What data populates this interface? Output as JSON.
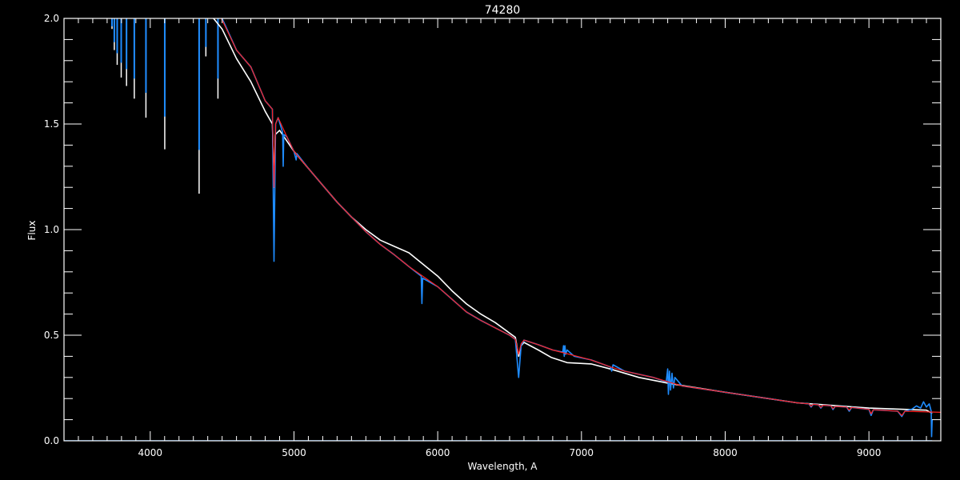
{
  "chart_data": {
    "type": "line",
    "title": "74280",
    "xlabel": "Wavelength, A",
    "ylabel": "Flux",
    "xlim": [
      3400,
      9500
    ],
    "ylim": [
      0.0,
      2.0
    ],
    "x_ticks": [
      4000,
      5000,
      6000,
      7000,
      8000,
      9000
    ],
    "x_tick_labels": [
      "4000",
      "5000",
      "6000",
      "7000",
      "8000",
      "9000"
    ],
    "x_minor_step": 100,
    "y_ticks": [
      0.0,
      0.5,
      1.0,
      1.5,
      2.0
    ],
    "y_tick_labels": [
      "0.0",
      "0.5",
      "1.0",
      "1.5",
      "2.0"
    ],
    "y_minor_step": 0.1,
    "grid": false,
    "background": "#000000",
    "axis_color": "#ffffff",
    "series": [
      {
        "color": "#ffffff",
        "points": [
          [
            4440,
            2.0
          ],
          [
            4500,
            1.95
          ],
          [
            4600,
            1.81
          ],
          [
            4700,
            1.7
          ],
          [
            4800,
            1.56
          ],
          [
            4850,
            1.5
          ],
          [
            4861,
            1.2
          ],
          [
            4870,
            1.45
          ],
          [
            4900,
            1.47
          ],
          [
            5000,
            1.37
          ],
          [
            5100,
            1.29
          ],
          [
            5200,
            1.21
          ],
          [
            5300,
            1.13
          ],
          [
            5400,
            1.06
          ],
          [
            5500,
            1.0
          ],
          [
            5600,
            0.95
          ],
          [
            5700,
            0.92
          ],
          [
            5800,
            0.89
          ],
          [
            5900,
            0.835
          ],
          [
            6000,
            0.78
          ],
          [
            6100,
            0.71
          ],
          [
            6200,
            0.648
          ],
          [
            6300,
            0.6
          ],
          [
            6400,
            0.56
          ],
          [
            6500,
            0.51
          ],
          [
            6540,
            0.49
          ],
          [
            6563,
            0.4
          ],
          [
            6580,
            0.45
          ],
          [
            6600,
            0.466
          ],
          [
            6700,
            0.43
          ],
          [
            6789,
            0.395
          ],
          [
            6900,
            0.37
          ],
          [
            7067,
            0.364
          ],
          [
            7200,
            0.34
          ],
          [
            7400,
            0.3
          ],
          [
            7622,
            0.27
          ],
          [
            8000,
            0.23
          ],
          [
            8500,
            0.18
          ],
          [
            9000,
            0.155
          ],
          [
            9400,
            0.145
          ],
          [
            9440,
            0.13
          ]
        ]
      },
      {
        "color": "#1e8cff",
        "points": [
          [
            4500,
            2.0
          ],
          [
            4600,
            1.85
          ],
          [
            4700,
            1.77
          ],
          [
            4800,
            1.61
          ],
          [
            4850,
            1.57
          ],
          [
            4861,
            0.85
          ],
          [
            4872,
            1.5
          ],
          [
            4890,
            1.53
          ],
          [
            4921,
            1.46
          ],
          [
            4925,
            1.3
          ],
          [
            4929,
            1.45
          ],
          [
            4950,
            1.44
          ],
          [
            5000,
            1.37
          ],
          [
            5015,
            1.33
          ],
          [
            5020,
            1.36
          ],
          [
            5100,
            1.29
          ],
          [
            5200,
            1.21
          ],
          [
            5300,
            1.13
          ],
          [
            5400,
            1.06
          ],
          [
            5500,
            0.99
          ],
          [
            5600,
            0.93
          ],
          [
            5700,
            0.88
          ],
          [
            5800,
            0.825
          ],
          [
            5885,
            0.78
          ],
          [
            5890,
            0.65
          ],
          [
            5895,
            0.77
          ],
          [
            6000,
            0.73
          ],
          [
            6100,
            0.67
          ],
          [
            6200,
            0.61
          ],
          [
            6300,
            0.57
          ],
          [
            6400,
            0.535
          ],
          [
            6500,
            0.5
          ],
          [
            6540,
            0.48
          ],
          [
            6563,
            0.3
          ],
          [
            6580,
            0.45
          ],
          [
            6600,
            0.477
          ],
          [
            6700,
            0.455
          ],
          [
            6800,
            0.43
          ],
          [
            6870,
            0.42
          ],
          [
            6875,
            0.45
          ],
          [
            6880,
            0.4
          ],
          [
            6885,
            0.45
          ],
          [
            6890,
            0.41
          ],
          [
            6900,
            0.43
          ],
          [
            6950,
            0.4
          ],
          [
            7067,
            0.383
          ],
          [
            7200,
            0.35
          ],
          [
            7210,
            0.33
          ],
          [
            7220,
            0.36
          ],
          [
            7300,
            0.33
          ],
          [
            7500,
            0.3
          ],
          [
            7590,
            0.28
          ],
          [
            7600,
            0.34
          ],
          [
            7605,
            0.22
          ],
          [
            7612,
            0.33
          ],
          [
            7620,
            0.24
          ],
          [
            7630,
            0.32
          ],
          [
            7640,
            0.25
          ],
          [
            7650,
            0.3
          ],
          [
            7700,
            0.26
          ],
          [
            8000,
            0.23
          ],
          [
            8300,
            0.2
          ],
          [
            8500,
            0.18
          ],
          [
            8583,
            0.175
          ],
          [
            8598,
            0.16
          ],
          [
            8612,
            0.173
          ],
          [
            8650,
            0.17
          ],
          [
            8665,
            0.155
          ],
          [
            8680,
            0.168
          ],
          [
            8735,
            0.166
          ],
          [
            8750,
            0.148
          ],
          [
            8765,
            0.163
          ],
          [
            8845,
            0.16
          ],
          [
            8863,
            0.14
          ],
          [
            8880,
            0.158
          ],
          [
            9000,
            0.149
          ],
          [
            9015,
            0.12
          ],
          [
            9030,
            0.147
          ],
          [
            9200,
            0.14
          ],
          [
            9229,
            0.115
          ],
          [
            9250,
            0.14
          ],
          [
            9300,
            0.15
          ],
          [
            9330,
            0.165
          ],
          [
            9360,
            0.155
          ],
          [
            9380,
            0.185
          ],
          [
            9400,
            0.16
          ],
          [
            9420,
            0.175
          ],
          [
            9433,
            0.14
          ],
          [
            9436,
            0.02
          ],
          [
            9440,
            0.1
          ]
        ]
      },
      {
        "color": "#ff2020",
        "points": [
          [
            4495,
            2.0
          ],
          [
            4600,
            1.85
          ],
          [
            4700,
            1.77
          ],
          [
            4800,
            1.61
          ],
          [
            4850,
            1.57
          ],
          [
            4861,
            1.2
          ],
          [
            4872,
            1.5
          ],
          [
            4890,
            1.53
          ],
          [
            4950,
            1.44
          ],
          [
            5000,
            1.37
          ],
          [
            5100,
            1.29
          ],
          [
            5200,
            1.21
          ],
          [
            5300,
            1.13
          ],
          [
            5400,
            1.06
          ],
          [
            5500,
            0.99
          ],
          [
            5600,
            0.93
          ],
          [
            5700,
            0.88
          ],
          [
            5800,
            0.825
          ],
          [
            6000,
            0.73
          ],
          [
            6100,
            0.67
          ],
          [
            6200,
            0.61
          ],
          [
            6300,
            0.57
          ],
          [
            6400,
            0.535
          ],
          [
            6500,
            0.5
          ],
          [
            6540,
            0.48
          ],
          [
            6563,
            0.41
          ],
          [
            6580,
            0.46
          ],
          [
            6600,
            0.477
          ],
          [
            6700,
            0.455
          ],
          [
            6800,
            0.43
          ],
          [
            7067,
            0.383
          ],
          [
            7200,
            0.35
          ],
          [
            7300,
            0.33
          ],
          [
            7500,
            0.3
          ],
          [
            7700,
            0.26
          ],
          [
            8000,
            0.23
          ],
          [
            8300,
            0.2
          ],
          [
            8500,
            0.18
          ],
          [
            8583,
            0.175
          ],
          [
            8598,
            0.163
          ],
          [
            8612,
            0.173
          ],
          [
            8650,
            0.17
          ],
          [
            8665,
            0.158
          ],
          [
            8680,
            0.168
          ],
          [
            8735,
            0.166
          ],
          [
            8750,
            0.152
          ],
          [
            8765,
            0.163
          ],
          [
            8845,
            0.16
          ],
          [
            8863,
            0.145
          ],
          [
            8880,
            0.158
          ],
          [
            9000,
            0.149
          ],
          [
            9015,
            0.128
          ],
          [
            9030,
            0.147
          ],
          [
            9200,
            0.14
          ],
          [
            9229,
            0.12
          ],
          [
            9250,
            0.14
          ],
          [
            9500,
            0.135
          ]
        ]
      },
      {
        "color": "#1e8cff",
        "points": [
          [
            3400,
            0.0
          ],
          [
            9440,
            0.0
          ]
        ]
      }
    ],
    "absorption_lines": [
      {
        "wavelength": 3734,
        "min_flux": 1.95
      },
      {
        "wavelength": 3750,
        "min_flux": 1.85
      },
      {
        "wavelength": 3770,
        "min_flux": 1.78
      },
      {
        "wavelength": 3798,
        "min_flux": 1.72
      },
      {
        "wavelength": 3835,
        "min_flux": 1.68
      },
      {
        "wavelength": 3889,
        "min_flux": 1.62
      },
      {
        "wavelength": 3970,
        "min_flux": 1.53
      },
      {
        "wavelength": 4101,
        "min_flux": 1.38
      },
      {
        "wavelength": 4340,
        "min_flux": 1.17
      },
      {
        "wavelength": 4387,
        "min_flux": 1.82
      },
      {
        "wavelength": 4471,
        "min_flux": 1.62
      }
    ]
  }
}
